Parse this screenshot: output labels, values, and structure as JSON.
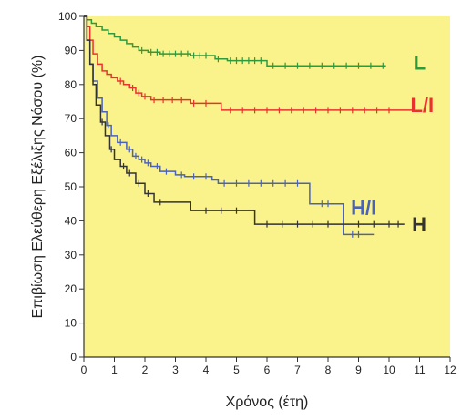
{
  "chart_data": {
    "type": "line",
    "step": true,
    "xlabel": "Χρόνος (έτη)",
    "ylabel": "Επιβίωση Ελεύθερη Εξέλιξης Νόσου (%)",
    "xlim": [
      0,
      12
    ],
    "ylim": [
      0,
      100
    ],
    "xticks": [
      "0",
      "1",
      "2",
      "3",
      "4",
      "5",
      "6",
      "7",
      "8",
      "9",
      "10",
      "11",
      "12"
    ],
    "yticks": [
      "0",
      "10",
      "20",
      "30",
      "40",
      "50",
      "60",
      "70",
      "80",
      "90",
      "100"
    ],
    "grid": false,
    "plot_background": "#faf28a",
    "series": [
      {
        "name": "L",
        "color": "#2e9a3c",
        "x": [
          0,
          0.1,
          0.25,
          0.4,
          0.6,
          0.8,
          1.0,
          1.2,
          1.4,
          1.6,
          1.8,
          2.1,
          2.5,
          3.5,
          4.3,
          4.7,
          6.0,
          9.9
        ],
        "y": [
          100,
          99,
          98,
          97,
          96,
          95,
          94,
          93,
          92,
          91,
          90,
          89.5,
          89,
          88.5,
          87.5,
          87,
          85.5,
          85.5
        ],
        "censor_x": [
          1.9,
          2.2,
          2.4,
          2.6,
          2.8,
          3.0,
          3.2,
          3.4,
          3.6,
          3.8,
          4.0,
          4.4,
          4.8,
          5.0,
          5.2,
          5.4,
          5.6,
          5.8,
          6.2,
          6.6,
          7.0,
          7.4,
          7.8,
          8.2,
          8.6,
          9.0,
          9.4,
          9.8
        ]
      },
      {
        "name": "L/I",
        "color": "#e8332d",
        "x": [
          0,
          0.1,
          0.2,
          0.3,
          0.45,
          0.6,
          0.75,
          0.9,
          1.1,
          1.3,
          1.5,
          1.7,
          1.9,
          2.2,
          3.5,
          4.5,
          10.8
        ],
        "y": [
          100,
          97,
          93,
          89,
          86,
          84,
          83,
          82,
          81,
          80,
          79,
          77.5,
          76.5,
          75.5,
          74.5,
          72.5,
          72.5
        ],
        "censor_x": [
          1.2,
          1.6,
          1.8,
          2.0,
          2.3,
          2.6,
          2.9,
          3.2,
          3.6,
          4.0,
          4.8,
          5.2,
          5.6,
          6.0,
          6.4,
          6.8,
          7.2,
          7.6,
          8.0,
          8.4,
          8.8,
          9.2,
          9.6,
          10.0
        ]
      },
      {
        "name": "H/I",
        "color": "#4a63b9",
        "x": [
          0,
          0.1,
          0.2,
          0.3,
          0.45,
          0.6,
          0.75,
          0.9,
          1.1,
          1.4,
          1.6,
          1.8,
          2.0,
          2.2,
          2.5,
          3.0,
          3.3,
          4.2,
          4.4,
          6.0,
          7.4,
          8.5,
          9.5
        ],
        "y": [
          100,
          93,
          86,
          81,
          76,
          72,
          68,
          65,
          63,
          61,
          59,
          58,
          57,
          56,
          54.5,
          53.5,
          53,
          52,
          51,
          51,
          45,
          36,
          36
        ],
        "censor_x": [
          0.8,
          1.2,
          1.5,
          1.7,
          1.9,
          2.1,
          2.4,
          2.7,
          3.2,
          3.6,
          4.0,
          4.6,
          5.0,
          5.4,
          5.8,
          6.2,
          6.6,
          7.0,
          7.8,
          8.0,
          8.8,
          9.0
        ]
      },
      {
        "name": "H",
        "color": "#333333",
        "x": [
          0,
          0.1,
          0.2,
          0.3,
          0.4,
          0.55,
          0.7,
          0.85,
          1.0,
          1.2,
          1.4,
          1.7,
          2.0,
          2.3,
          3.5,
          5.6,
          8.6,
          10.5
        ],
        "y": [
          100,
          93,
          86,
          80,
          74,
          69,
          65,
          61,
          58,
          56,
          54,
          51,
          48,
          45.5,
          43,
          39,
          39,
          39
        ],
        "censor_x": [
          0.6,
          0.9,
          1.3,
          1.5,
          1.8,
          2.1,
          2.5,
          4.0,
          4.5,
          5.0,
          6.0,
          6.5,
          7.0,
          7.5,
          8.0,
          9.0,
          9.5,
          10.0,
          10.3
        ]
      }
    ]
  }
}
